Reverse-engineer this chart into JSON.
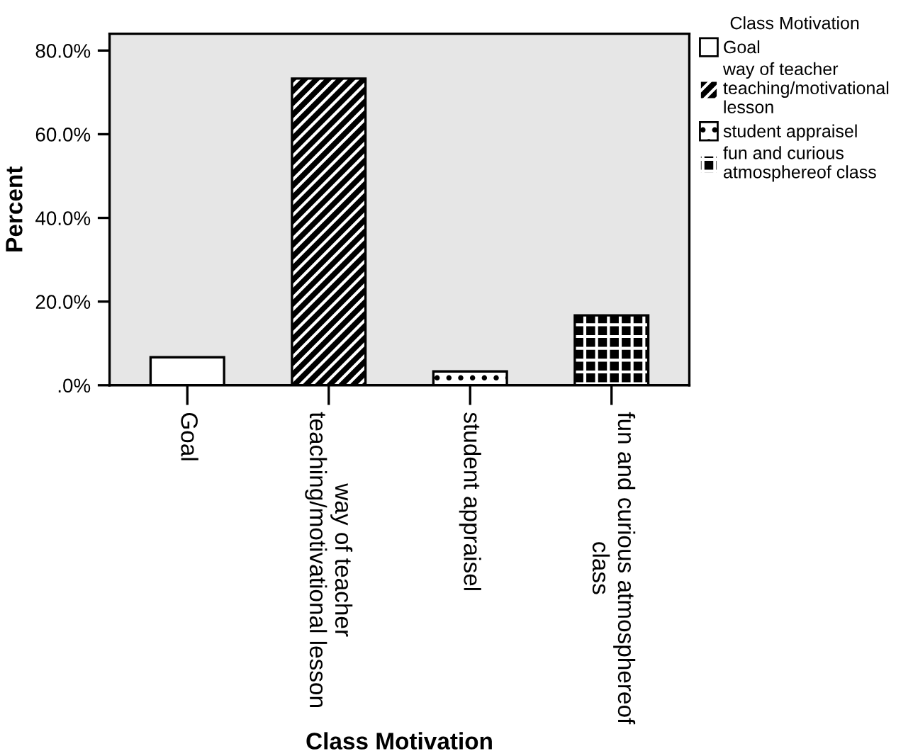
{
  "chart_data": {
    "type": "bar",
    "xlabel": "Class Motivation",
    "ylabel": "Percent",
    "legend_title": "Class Motivation",
    "categories": [
      "Goal",
      "way of teacher\nteaching/motivational lesson",
      "student appraisel",
      "fun and curious atmosphereof\nclass"
    ],
    "series": [
      {
        "name": "Goal",
        "color": "#ffffff",
        "values": [
          6.7,
          null,
          null,
          null
        ]
      },
      {
        "name": "way of teacher teaching/motivational lesson",
        "color": "#000000",
        "values": [
          null,
          73.3,
          null,
          null
        ]
      },
      {
        "name": "student appraisel",
        "color": "#ffffff",
        "values": [
          null,
          null,
          3.3,
          null
        ]
      },
      {
        "name": "fun and curious atmosphereof class",
        "color": "#000000",
        "values": [
          null,
          null,
          null,
          16.7
        ]
      }
    ],
    "ylim": [
      0,
      84
    ],
    "yticks": [
      {
        "value": 0,
        "label": ".0%"
      },
      {
        "value": 20,
        "label": "20.0%"
      },
      {
        "value": 40,
        "label": "40.0%"
      },
      {
        "value": 60,
        "label": "60.0%"
      },
      {
        "value": 80,
        "label": "80.0%"
      }
    ],
    "grid": false,
    "legend": "top right"
  }
}
